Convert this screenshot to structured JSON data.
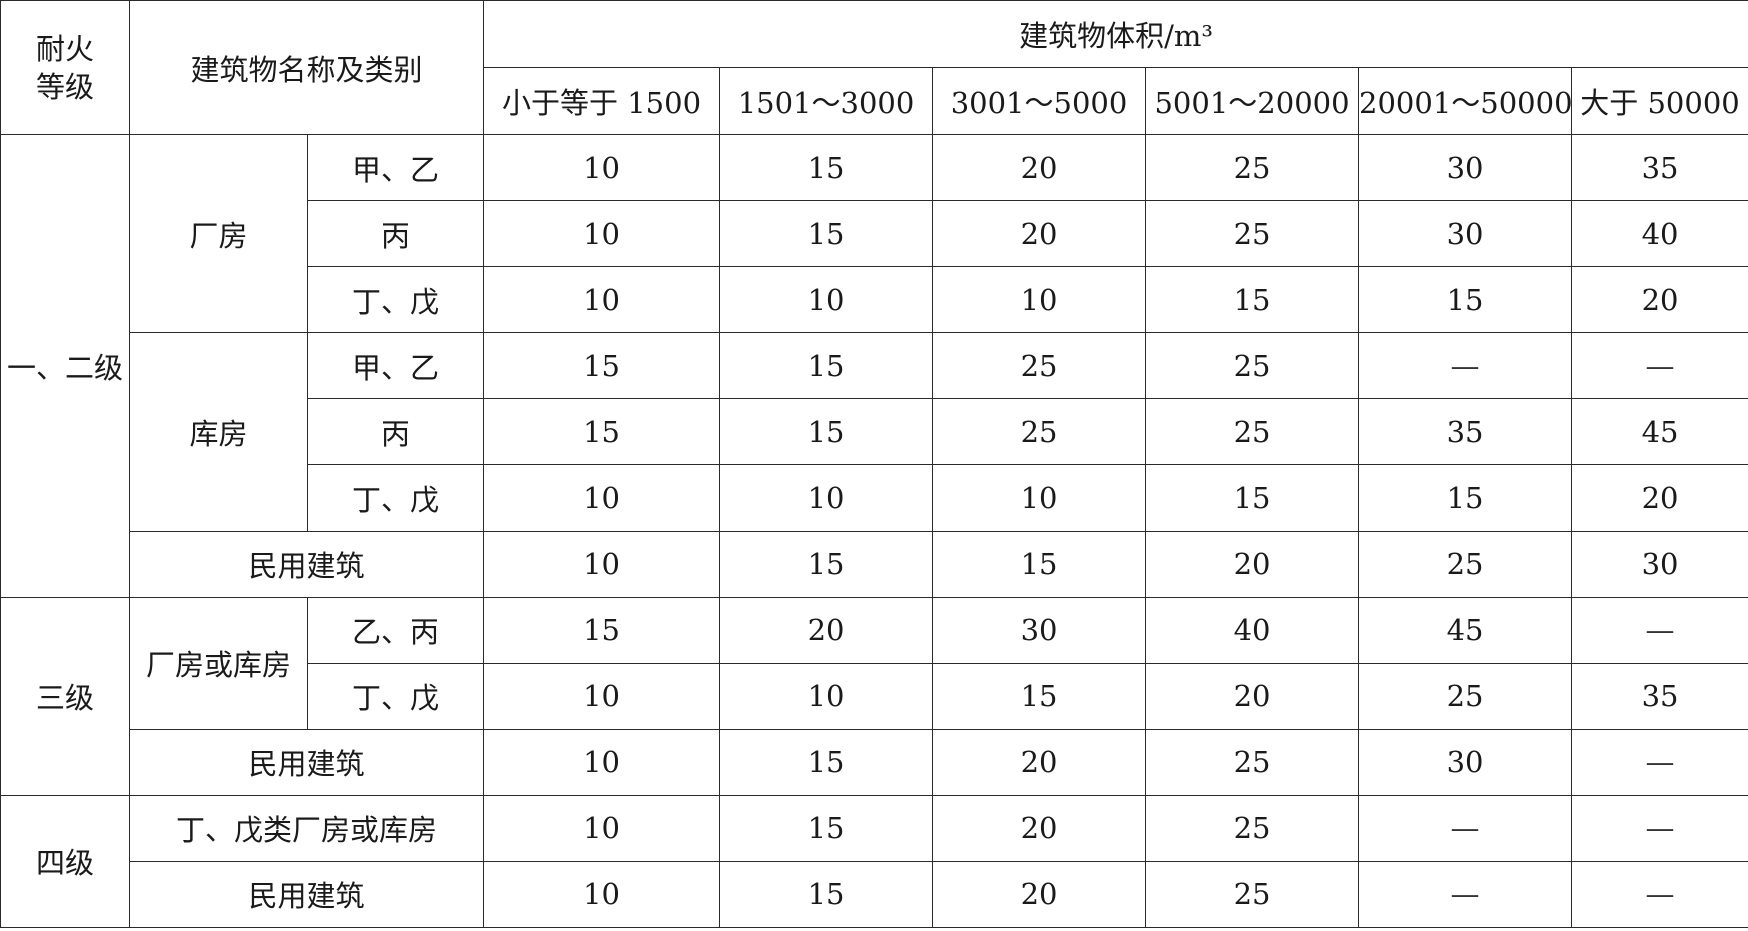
{
  "header": {
    "fire_rating": "耐火等级",
    "fire_rating_line1": "耐火",
    "fire_rating_line2": "等级",
    "building_name": "建筑物名称及类别",
    "volume_title": "建筑物体积/m³",
    "volume_columns": [
      "小于等于 1500",
      "1501～3000",
      "3001～5000",
      "5001～20000",
      "20001～50000",
      "大于 50000"
    ]
  },
  "groups": {
    "g12": "一、二级",
    "g3": "三级",
    "g4": "四级"
  },
  "categories": {
    "factory": "厂房",
    "warehouse": "库房",
    "factory_or_warehouse": "厂房或库房",
    "civil": "民用建筑",
    "ding_wu_factory_warehouse": "丁、戊类厂房或库房"
  },
  "subtypes": {
    "jia_yi": "甲、乙",
    "bing": "丙",
    "ding_wu": "丁、戊",
    "yi_bing": "乙、丙"
  },
  "rows": [
    {
      "values": [
        "10",
        "15",
        "20",
        "25",
        "30",
        "35"
      ]
    },
    {
      "values": [
        "10",
        "15",
        "20",
        "25",
        "30",
        "40"
      ]
    },
    {
      "values": [
        "10",
        "10",
        "10",
        "15",
        "15",
        "20"
      ]
    },
    {
      "values": [
        "15",
        "15",
        "25",
        "25",
        "—",
        "—"
      ]
    },
    {
      "values": [
        "15",
        "15",
        "25",
        "25",
        "35",
        "45"
      ]
    },
    {
      "values": [
        "10",
        "10",
        "10",
        "15",
        "15",
        "20"
      ]
    },
    {
      "values": [
        "10",
        "15",
        "15",
        "20",
        "25",
        "30"
      ]
    },
    {
      "values": [
        "15",
        "20",
        "30",
        "40",
        "45",
        "—"
      ]
    },
    {
      "values": [
        "10",
        "10",
        "15",
        "20",
        "25",
        "35"
      ]
    },
    {
      "values": [
        "10",
        "15",
        "20",
        "25",
        "30",
        "—"
      ]
    },
    {
      "values": [
        "10",
        "15",
        "20",
        "25",
        "—",
        "—"
      ]
    },
    {
      "values": [
        "10",
        "15",
        "20",
        "25",
        "—",
        "—"
      ]
    }
  ]
}
